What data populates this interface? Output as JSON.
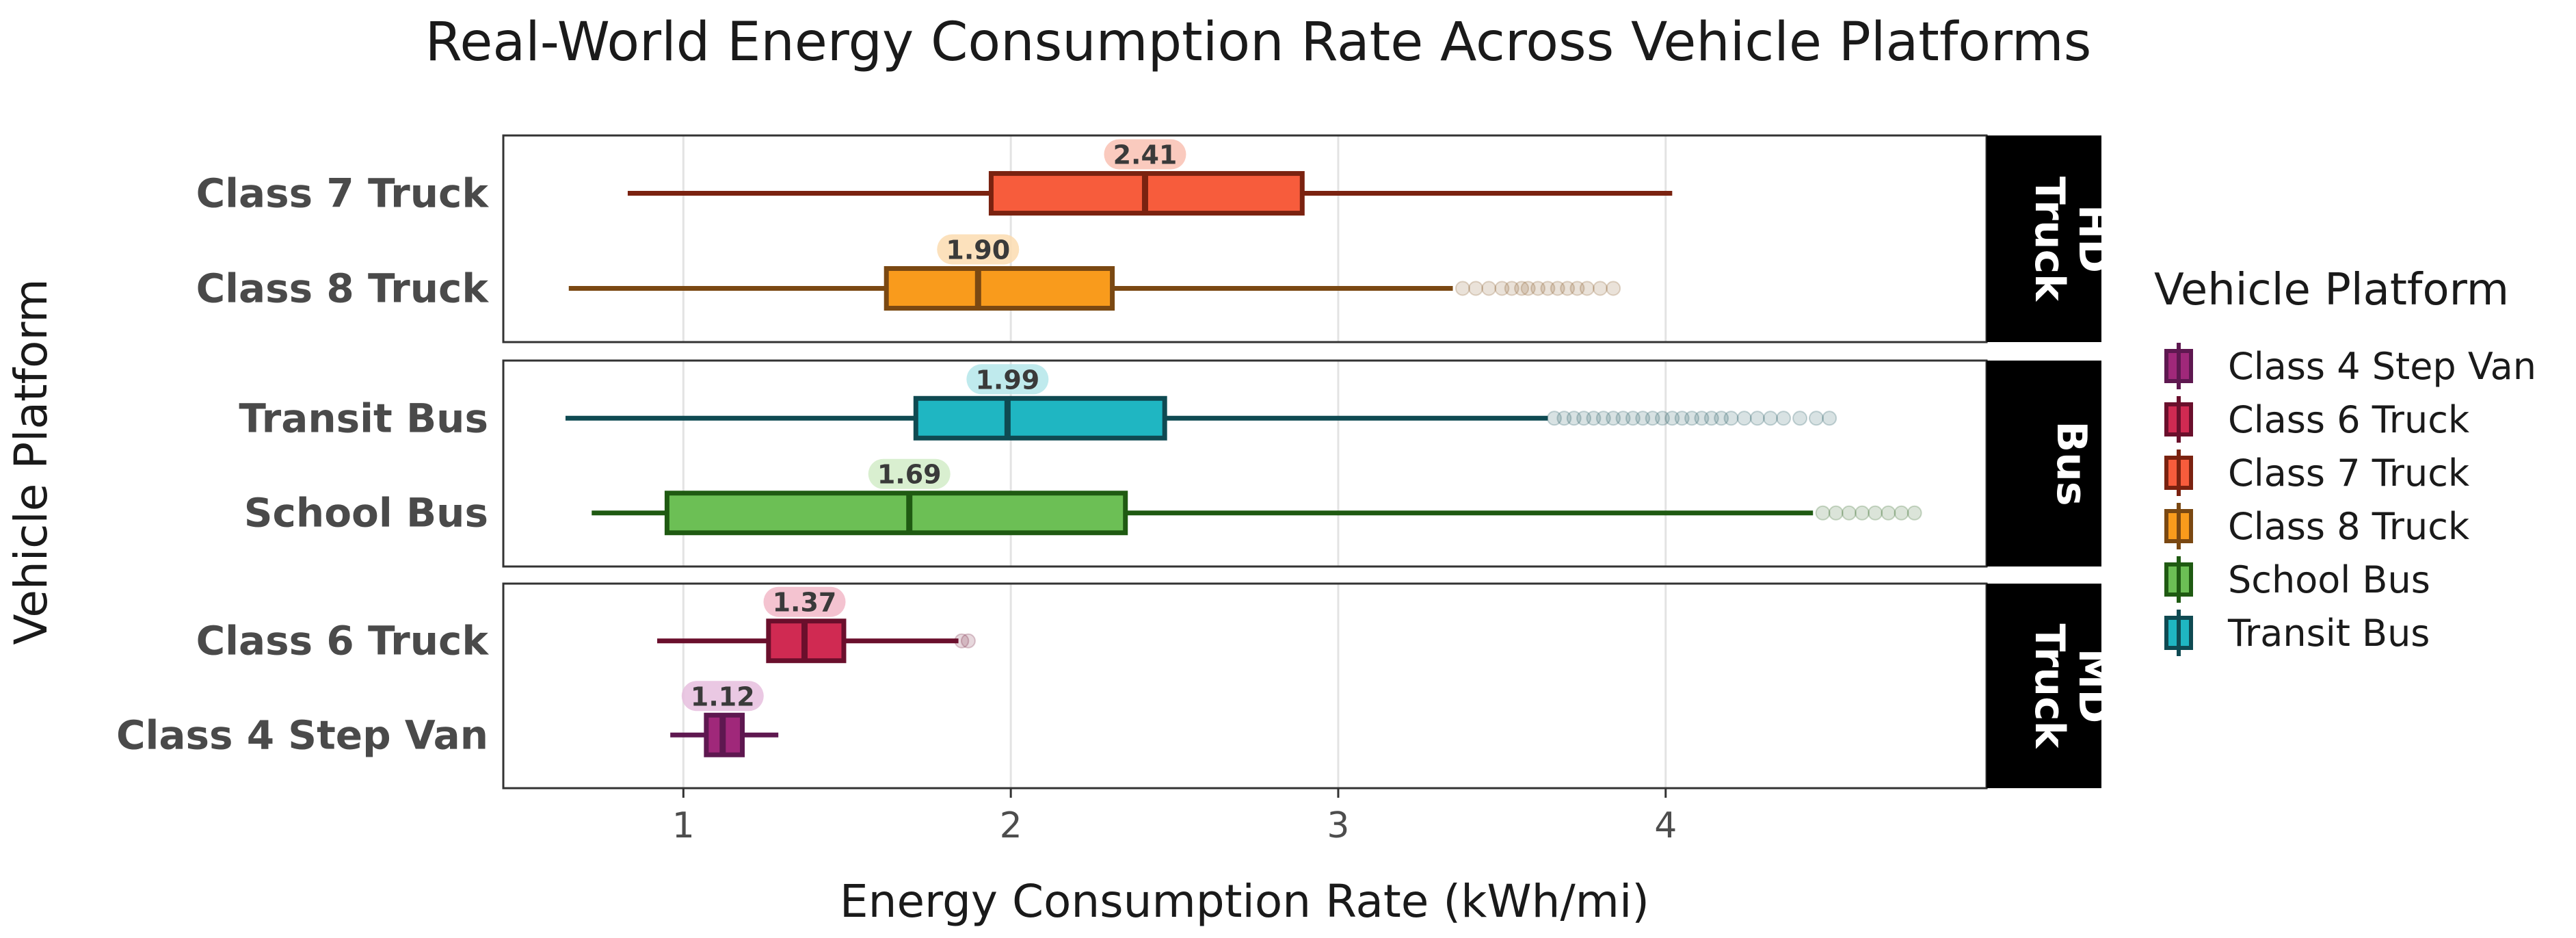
{
  "chart_data": {
    "type": "boxplot",
    "title": "Real-World Energy Consumption Rate Across Vehicle Platforms",
    "xlabel": "Energy Consumption Rate (kWh/mi)",
    "ylabel": "Vehicle Platform",
    "xlim": [
      0.45,
      4.98
    ],
    "x_ticks": [
      1,
      2,
      3,
      4
    ],
    "x_tick_labels": [
      "1",
      "2",
      "3",
      "4"
    ],
    "grid": true,
    "legend": {
      "title": "Vehicle Platform",
      "position": "right",
      "items": [
        {
          "label": "Class 4 Step Van",
          "fill": "#a0287a",
          "line": "#5e1850"
        },
        {
          "label": "Class 6 Truck",
          "fill": "#d02a52",
          "line": "#6a0f2c"
        },
        {
          "label": "Class 7 Truck",
          "fill": "#f75c3c",
          "line": "#7a2210"
        },
        {
          "label": "Class 8 Truck",
          "fill": "#f99b1c",
          "line": "#7a4812"
        },
        {
          "label": "School Bus",
          "fill": "#6cbf55",
          "line": "#1f5a12"
        },
        {
          "label": "Transit Bus",
          "fill": "#1fb6c2",
          "line": "#0f4a52"
        }
      ]
    },
    "facets": [
      {
        "label_lines": [
          "HD",
          "Truck"
        ],
        "boxes": [
          {
            "category": "Class 7 Truck",
            "whisker_low": 0.83,
            "q1": 1.94,
            "median": 2.41,
            "q3": 2.89,
            "whisker_high": 4.02,
            "median_label": "2.41",
            "fill": "#f75c3c",
            "line": "#7a2210",
            "badge": "#f9c1b3",
            "outliers": []
          },
          {
            "category": "Class 8 Truck",
            "whisker_low": 0.65,
            "q1": 1.62,
            "median": 1.9,
            "q3": 2.31,
            "whisker_high": 3.35,
            "median_label": "1.90",
            "fill": "#f99b1c",
            "line": "#7a4812",
            "badge": "#fcdcb0",
            "outliers": [
              3.38,
              3.42,
              3.46,
              3.5,
              3.53,
              3.56,
              3.58,
              3.61,
              3.64,
              3.67,
              3.7,
              3.73,
              3.76,
              3.8,
              3.84
            ]
          }
        ]
      },
      {
        "label_lines": [
          "Bus"
        ],
        "boxes": [
          {
            "category": "Transit Bus",
            "whisker_low": 0.64,
            "q1": 1.71,
            "median": 1.99,
            "q3": 2.47,
            "whisker_high": 3.64,
            "median_label": "1.99",
            "fill": "#1fb6c2",
            "line": "#0f4a52",
            "badge": "#b4e6ea",
            "outliers": [
              3.66,
              3.69,
              3.72,
              3.75,
              3.78,
              3.81,
              3.84,
              3.87,
              3.9,
              3.93,
              3.96,
              3.99,
              4.02,
              4.05,
              4.08,
              4.11,
              4.14,
              4.17,
              4.2,
              4.24,
              4.28,
              4.32,
              4.36,
              4.41,
              4.46,
              4.5
            ]
          },
          {
            "category": "School Bus",
            "whisker_low": 0.72,
            "q1": 0.95,
            "median": 1.69,
            "q3": 2.35,
            "whisker_high": 4.45,
            "median_label": "1.69",
            "fill": "#6cbf55",
            "line": "#1f5a12",
            "badge": "#d2ecc8",
            "outliers": [
              4.48,
              4.52,
              4.56,
              4.6,
              4.64,
              4.68,
              4.72,
              4.76
            ]
          }
        ]
      },
      {
        "label_lines": [
          "MD",
          "Truck"
        ],
        "boxes": [
          {
            "category": "Class 6 Truck",
            "whisker_low": 0.92,
            "q1": 1.26,
            "median": 1.37,
            "q3": 1.49,
            "whisker_high": 1.84,
            "median_label": "1.37",
            "fill": "#d02a52",
            "line": "#6a0f2c",
            "badge": "#f2b8c8",
            "outliers": [
              1.85,
              1.87
            ]
          },
          {
            "category": "Class 4 Step Van",
            "whisker_low": 0.96,
            "q1": 1.07,
            "median": 1.12,
            "q3": 1.18,
            "whisker_high": 1.29,
            "median_label": "1.12",
            "fill": "#a0287a",
            "line": "#5e1850",
            "badge": "#e6bede",
            "outliers": []
          }
        ]
      }
    ]
  }
}
